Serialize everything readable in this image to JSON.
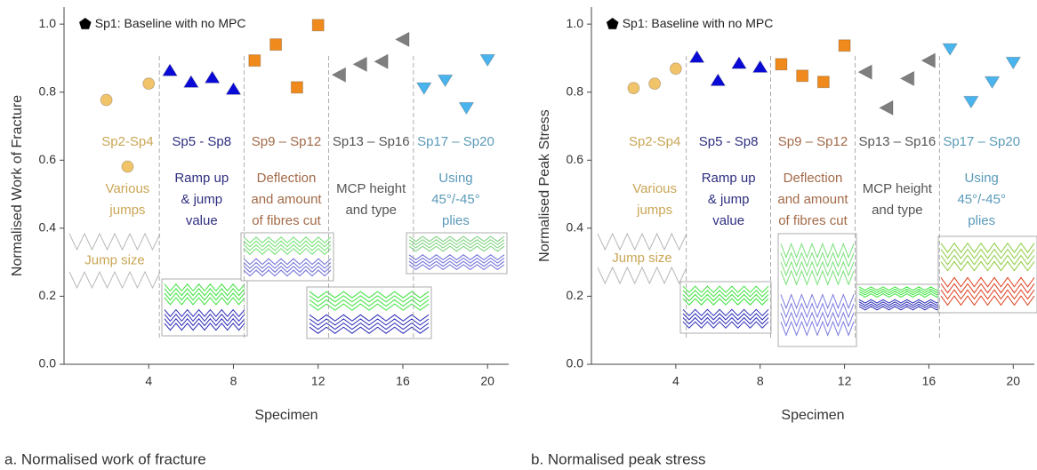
{
  "chart_data": [
    {
      "type": "scatter",
      "caption": "a. Normalised work of fracture",
      "x_label": "Specimen",
      "y_label": "Normalised Work of Fracture",
      "xlim": [
        0,
        21
      ],
      "ylim": [
        0,
        1.05
      ],
      "xticks": [
        4,
        8,
        12,
        16,
        20
      ],
      "yticks": [
        {
          "value": 0,
          "label": "0.0"
        },
        0.2,
        0.4,
        0.6,
        0.8,
        {
          "value": 1,
          "label": "1.0"
        }
      ],
      "inset_label": "Jump size",
      "series": [
        {
          "name": "Sp1: Baseline with no MPC",
          "color": "#000000",
          "marker": "pentagon",
          "x": [
            1
          ],
          "values": [
            1
          ]
        },
        {
          "name": "Sp2-Sp4",
          "color": "#f2c46a",
          "label_color": "#c9a655",
          "marker": "circle",
          "x": [
            2,
            3,
            4
          ],
          "values": [
            0.777,
            0.581,
            0.825
          ],
          "description": [
            "Various",
            "jumps"
          ]
        },
        {
          "name": "Sp5 - Sp8",
          "color": "#0a0ad8",
          "label_color": "#2e2e80",
          "marker": "up",
          "x": [
            5,
            6,
            7,
            8
          ],
          "values": [
            0.864,
            0.83,
            0.843,
            0.809
          ],
          "description": [
            "Ramp up",
            "& jump",
            "value"
          ]
        },
        {
          "name": "Sp9 – Sp12",
          "color": "#f08a1c",
          "label_color": "#a36a48",
          "marker": "square",
          "x": [
            9,
            10,
            11,
            12
          ],
          "values": [
            0.893,
            0.94,
            0.814,
            0.997
          ],
          "description": [
            "Deflection",
            "and amount",
            "of fibres cut"
          ]
        },
        {
          "name": "Sp13 – Sp16",
          "color": "#7f7f7f",
          "label_color": "#555555",
          "marker": "left",
          "x": [
            13,
            14,
            15,
            16
          ],
          "values": [
            0.851,
            0.882,
            0.89,
            0.955
          ],
          "description": [
            "MCP height",
            "and type"
          ]
        },
        {
          "name": "Sp17 – Sp20",
          "color": "#4ab4ee",
          "label_color": "#5a9ab8",
          "marker": "down",
          "x": [
            17,
            18,
            19,
            20
          ],
          "values": [
            0.812,
            0.835,
            0.754,
            0.895
          ],
          "description": [
            "Using",
            "45°/-45°",
            "plies"
          ]
        }
      ]
    },
    {
      "type": "scatter",
      "caption": "b. Normalised peak stress",
      "x_label": "Specimen",
      "y_label": "Normalised Peak Stress",
      "xlim": [
        0,
        21
      ],
      "ylim": [
        0,
        1.05
      ],
      "xticks": [
        4,
        8,
        12,
        16,
        20
      ],
      "yticks": [
        {
          "value": 0,
          "label": "0.0"
        },
        0.2,
        0.4,
        0.6,
        0.8,
        {
          "value": 1,
          "label": "1.0"
        }
      ],
      "inset_label": "Jump size",
      "series": [
        {
          "name": "Sp1: Baseline with no MPC",
          "color": "#000000",
          "marker": "pentagon",
          "x": [
            1
          ],
          "values": [
            1
          ]
        },
        {
          "name": "Sp2-Sp4",
          "color": "#f2c46a",
          "label_color": "#c9a655",
          "marker": "circle",
          "x": [
            2,
            3,
            4
          ],
          "values": [
            0.812,
            0.825,
            0.869
          ],
          "description": [
            "Various",
            "jumps"
          ]
        },
        {
          "name": "Sp5 - Sp8",
          "color": "#0a0ad8",
          "label_color": "#2e2e80",
          "marker": "up",
          "x": [
            5,
            6,
            7,
            8
          ],
          "values": [
            0.903,
            0.835,
            0.885,
            0.874
          ],
          "description": [
            "Ramp up",
            "& jump",
            "value"
          ]
        },
        {
          "name": "Sp9 – Sp12",
          "color": "#f08a1c",
          "label_color": "#a36a48",
          "marker": "square",
          "x": [
            9,
            10,
            11,
            12
          ],
          "values": [
            0.882,
            0.848,
            0.83,
            0.937
          ],
          "description": [
            "Deflection",
            "and amount",
            "of fibres cut"
          ]
        },
        {
          "name": "Sp13 – Sp16",
          "color": "#7f7f7f",
          "label_color": "#555555",
          "marker": "left",
          "x": [
            13,
            14,
            15,
            16
          ],
          "values": [
            0.859,
            0.754,
            0.84,
            0.893
          ],
          "description": [
            "MCP height",
            "and type"
          ]
        },
        {
          "name": "Sp17 – Sp20",
          "color": "#4ab4ee",
          "label_color": "#5a9ab8",
          "marker": "down",
          "x": [
            17,
            18,
            19,
            20
          ],
          "values": [
            0.927,
            0.772,
            0.83,
            0.887
          ],
          "description": [
            "Using",
            "45°/-45°",
            "plies"
          ]
        }
      ]
    }
  ]
}
